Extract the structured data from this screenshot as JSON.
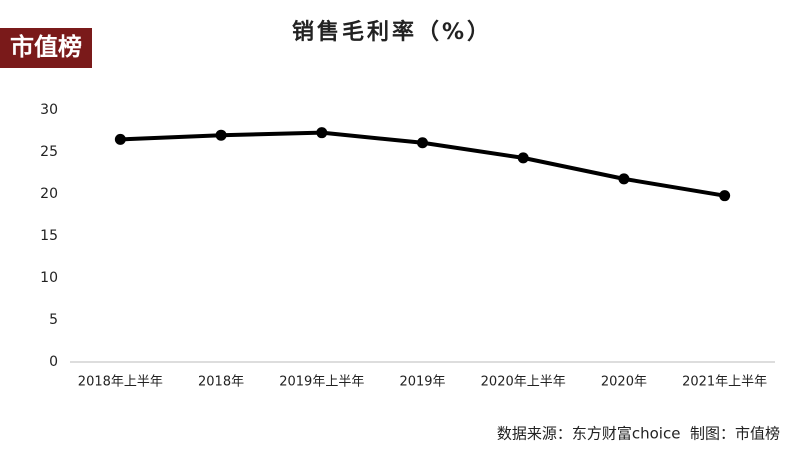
{
  "logo": "市值榜",
  "chart_data": {
    "type": "line",
    "title": "销售毛利率（%）",
    "categories": [
      "2018年上半年",
      "2018年",
      "2019年上半年",
      "2019年",
      "2020年上半年",
      "2020年",
      "2021年上半年"
    ],
    "series": [
      {
        "name": "销售毛利率",
        "color": "#000000",
        "values": [
          26.5,
          27.0,
          27.3,
          26.1,
          24.3,
          21.8,
          19.8
        ]
      }
    ],
    "ylim": [
      0,
      30
    ],
    "yticks": [
      0,
      5,
      10,
      15,
      20,
      25,
      30
    ],
    "grid": false,
    "source": "数据来源：东方财富choice  制图：市值榜"
  }
}
